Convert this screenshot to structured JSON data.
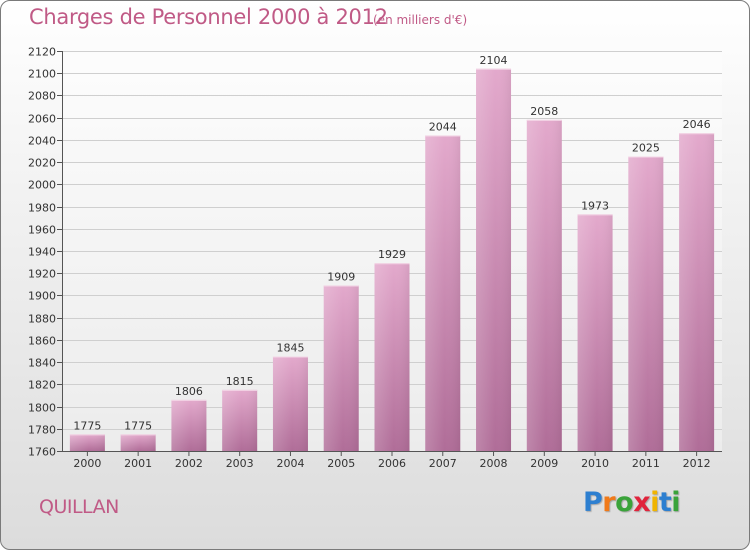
{
  "header": {
    "title": "Charges de Personnel 2000 à 2012",
    "subtitle": "(en milliers d'€)"
  },
  "place_name": "QUILLAN",
  "logo": {
    "letters": [
      "P",
      "r",
      "o",
      "x",
      "i",
      "t",
      "i"
    ],
    "colors": [
      "#2d7fd0",
      "#f07a1a",
      "#3aa33a",
      "#e0243c",
      "#f0b400",
      "#2d7fd0",
      "#3aa33a"
    ]
  },
  "colors": {
    "bar_top": "#e3a9cc",
    "bar_bottom": "#b06d98",
    "accent": "#c05a86"
  },
  "chart_data": {
    "type": "bar",
    "title": "Charges de Personnel 2000 à 2012",
    "subtitle": "(en milliers d'€)",
    "categories": [
      "2000",
      "2001",
      "2002",
      "2003",
      "2004",
      "2005",
      "2006",
      "2007",
      "2008",
      "2009",
      "2010",
      "2011",
      "2012"
    ],
    "values": [
      1775,
      1775,
      1806,
      1815,
      1845,
      1909,
      1929,
      2044,
      2104,
      2058,
      1973,
      2025,
      2046
    ],
    "ylim": [
      1760,
      2120
    ],
    "yticks": [
      1760,
      1780,
      1800,
      1820,
      1840,
      1860,
      1880,
      1900,
      1920,
      1940,
      1960,
      1980,
      2000,
      2020,
      2040,
      2060,
      2080,
      2100,
      2120
    ],
    "grid": true,
    "xlabel": "",
    "ylabel": ""
  }
}
